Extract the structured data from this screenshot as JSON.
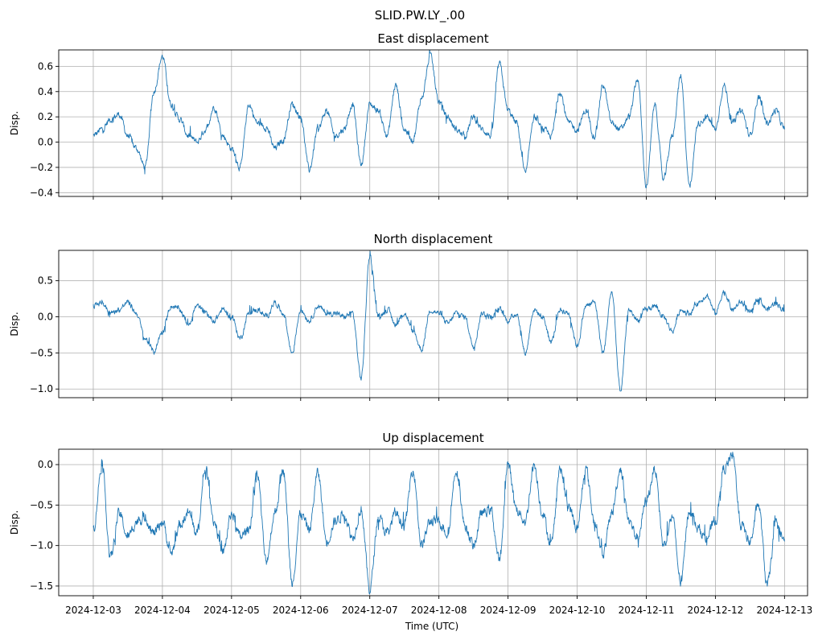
{
  "figure": {
    "suptitle": "SLID.PW.LY_.00"
  },
  "chart_data": [
    {
      "type": "line",
      "title": "East displacement",
      "ylabel": "Disp.",
      "xlabel": "",
      "xlim": [
        "2024-12-02T12:00",
        "2024-12-13T08:00"
      ],
      "ylim": [
        -0.43,
        0.73
      ],
      "yticks": [
        -0.4,
        -0.2,
        0.0,
        0.2,
        0.4,
        0.6
      ],
      "ytick_labels": [
        "−0.4",
        "−0.2",
        "0.0",
        "0.2",
        "0.4",
        "0.6"
      ],
      "xticks": [
        "2024-12-03",
        "2024-12-04",
        "2024-12-05",
        "2024-12-06",
        "2024-12-07",
        "2024-12-08",
        "2024-12-09",
        "2024-12-10",
        "2024-12-11",
        "2024-12-12",
        "2024-12-13"
      ],
      "show_xtick_labels": false,
      "grid": true,
      "color": "#1f77b4",
      "series": [
        {
          "x": [
            "2024-12-03T00:00",
            "2024-12-03T03:00",
            "2024-12-03T06:00",
            "2024-12-03T09:00",
            "2024-12-03T12:00",
            "2024-12-03T15:00",
            "2024-12-03T18:00",
            "2024-12-03T21:00",
            "2024-12-04T00:00",
            "2024-12-04T03:00",
            "2024-12-04T06:00",
            "2024-12-04T09:00",
            "2024-12-04T12:00",
            "2024-12-04T15:00",
            "2024-12-04T18:00",
            "2024-12-04T21:00",
            "2024-12-05T00:00",
            "2024-12-05T03:00",
            "2024-12-05T06:00",
            "2024-12-05T09:00",
            "2024-12-05T12:00",
            "2024-12-05T15:00",
            "2024-12-05T18:00",
            "2024-12-05T21:00",
            "2024-12-06T00:00",
            "2024-12-06T03:00",
            "2024-12-06T06:00",
            "2024-12-06T09:00",
            "2024-12-06T12:00",
            "2024-12-06T15:00",
            "2024-12-06T18:00",
            "2024-12-06T21:00",
            "2024-12-07T00:00",
            "2024-12-07T03:00",
            "2024-12-07T06:00",
            "2024-12-07T09:00",
            "2024-12-07T12:00",
            "2024-12-07T15:00",
            "2024-12-07T18:00",
            "2024-12-07T21:00",
            "2024-12-08T00:00",
            "2024-12-08T03:00",
            "2024-12-08T06:00",
            "2024-12-08T09:00",
            "2024-12-08T12:00",
            "2024-12-08T15:00",
            "2024-12-08T18:00",
            "2024-12-08T21:00",
            "2024-12-09T00:00",
            "2024-12-09T03:00",
            "2024-12-09T06:00",
            "2024-12-09T09:00",
            "2024-12-09T12:00",
            "2024-12-09T15:00",
            "2024-12-09T18:00",
            "2024-12-09T21:00",
            "2024-12-10T00:00",
            "2024-12-10T03:00",
            "2024-12-10T06:00",
            "2024-12-10T09:00",
            "2024-12-10T12:00",
            "2024-12-10T15:00",
            "2024-12-10T18:00",
            "2024-12-10T21:00",
            "2024-12-11T00:00",
            "2024-12-11T03:00",
            "2024-12-11T06:00",
            "2024-12-11T09:00",
            "2024-12-11T12:00",
            "2024-12-11T15:00",
            "2024-12-11T18:00",
            "2024-12-11T21:00",
            "2024-12-12T00:00",
            "2024-12-12T03:00",
            "2024-12-12T06:00",
            "2024-12-12T09:00",
            "2024-12-12T12:00",
            "2024-12-12T15:00",
            "2024-12-12T18:00",
            "2024-12-12T21:00",
            "2024-12-13T00:00"
          ],
          "y": [
            0.05,
            0.1,
            0.18,
            0.22,
            0.05,
            -0.05,
            -0.2,
            0.4,
            0.68,
            0.3,
            0.18,
            0.05,
            0.0,
            0.1,
            0.28,
            0.05,
            -0.05,
            -0.2,
            0.3,
            0.15,
            0.12,
            -0.05,
            0.02,
            0.3,
            0.2,
            -0.22,
            0.1,
            0.25,
            0.05,
            0.1,
            0.3,
            -0.18,
            0.3,
            0.25,
            0.05,
            0.45,
            0.1,
            0.02,
            0.35,
            0.68,
            0.32,
            0.2,
            0.1,
            0.05,
            0.2,
            0.1,
            0.05,
            0.62,
            0.25,
            0.15,
            -0.25,
            0.2,
            0.1,
            0.05,
            0.4,
            0.15,
            0.1,
            0.25,
            0.05,
            0.45,
            0.15,
            0.1,
            0.2,
            0.5,
            -0.35,
            0.3,
            -0.3,
            0.05,
            0.52,
            -0.35,
            0.15,
            0.2,
            0.1,
            0.45,
            0.15,
            0.25,
            0.05,
            0.35,
            0.15,
            0.25,
            0.1
          ],
          "noise": 0.04
        }
      ]
    },
    {
      "type": "line",
      "title": "North displacement",
      "ylabel": "Disp.",
      "xlabel": "",
      "xlim": [
        "2024-12-02T12:00",
        "2024-12-13T08:00"
      ],
      "ylim": [
        -1.12,
        0.92
      ],
      "yticks": [
        -1.0,
        -0.5,
        0.0,
        0.5
      ],
      "ytick_labels": [
        "−1.0",
        "−0.5",
        "0.0",
        "0.5"
      ],
      "xticks": [
        "2024-12-03",
        "2024-12-04",
        "2024-12-05",
        "2024-12-06",
        "2024-12-07",
        "2024-12-08",
        "2024-12-09",
        "2024-12-10",
        "2024-12-11",
        "2024-12-12",
        "2024-12-13"
      ],
      "show_xtick_labels": false,
      "grid": true,
      "color": "#1f77b4",
      "series": [
        {
          "x": [
            "2024-12-03T00:00",
            "2024-12-03T03:00",
            "2024-12-03T06:00",
            "2024-12-03T09:00",
            "2024-12-03T12:00",
            "2024-12-03T15:00",
            "2024-12-03T18:00",
            "2024-12-03T21:00",
            "2024-12-04T00:00",
            "2024-12-04T03:00",
            "2024-12-04T06:00",
            "2024-12-04T09:00",
            "2024-12-04T12:00",
            "2024-12-04T15:00",
            "2024-12-04T18:00",
            "2024-12-04T21:00",
            "2024-12-05T00:00",
            "2024-12-05T03:00",
            "2024-12-05T06:00",
            "2024-12-05T09:00",
            "2024-12-05T12:00",
            "2024-12-05T15:00",
            "2024-12-05T18:00",
            "2024-12-05T21:00",
            "2024-12-06T00:00",
            "2024-12-06T03:00",
            "2024-12-06T06:00",
            "2024-12-06T09:00",
            "2024-12-06T12:00",
            "2024-12-06T15:00",
            "2024-12-06T18:00",
            "2024-12-06T21:00",
            "2024-12-07T00:00",
            "2024-12-07T03:00",
            "2024-12-07T06:00",
            "2024-12-07T09:00",
            "2024-12-07T12:00",
            "2024-12-07T15:00",
            "2024-12-07T18:00",
            "2024-12-07T21:00",
            "2024-12-08T00:00",
            "2024-12-08T03:00",
            "2024-12-08T06:00",
            "2024-12-08T09:00",
            "2024-12-08T12:00",
            "2024-12-08T15:00",
            "2024-12-08T18:00",
            "2024-12-08T21:00",
            "2024-12-09T00:00",
            "2024-12-09T03:00",
            "2024-12-09T06:00",
            "2024-12-09T09:00",
            "2024-12-09T12:00",
            "2024-12-09T15:00",
            "2024-12-09T18:00",
            "2024-12-09T21:00",
            "2024-12-10T00:00",
            "2024-12-10T03:00",
            "2024-12-10T06:00",
            "2024-12-10T09:00",
            "2024-12-10T12:00",
            "2024-12-10T15:00",
            "2024-12-10T18:00",
            "2024-12-10T21:00",
            "2024-12-11T00:00",
            "2024-12-11T03:00",
            "2024-12-11T06:00",
            "2024-12-11T09:00",
            "2024-12-11T12:00",
            "2024-12-11T15:00",
            "2024-12-11T18:00",
            "2024-12-11T21:00",
            "2024-12-12T00:00",
            "2024-12-12T03:00",
            "2024-12-12T06:00",
            "2024-12-12T09:00",
            "2024-12-12T12:00",
            "2024-12-12T15:00",
            "2024-12-12T18:00",
            "2024-12-12T21:00",
            "2024-12-13T00:00"
          ],
          "y": [
            0.15,
            0.2,
            0.05,
            0.1,
            0.2,
            0.05,
            -0.3,
            -0.48,
            -0.2,
            0.15,
            0.1,
            -0.1,
            0.15,
            0.05,
            -0.05,
            0.1,
            0.0,
            -0.3,
            0.05,
            0.1,
            0.0,
            0.2,
            0.05,
            -0.5,
            0.1,
            -0.05,
            0.15,
            0.05,
            0.05,
            0.0,
            0.05,
            -0.85,
            0.85,
            0.0,
            0.1,
            -0.1,
            0.05,
            -0.2,
            -0.45,
            0.1,
            0.05,
            -0.1,
            0.05,
            0.0,
            -0.4,
            0.05,
            0.0,
            0.1,
            -0.05,
            0.05,
            -0.5,
            0.1,
            0.0,
            -0.35,
            0.1,
            0.05,
            -0.4,
            0.15,
            0.2,
            -0.5,
            0.35,
            -1.02,
            0.1,
            -0.05,
            0.1,
            0.15,
            0.0,
            -0.2,
            0.1,
            0.05,
            0.2,
            0.3,
            0.05,
            0.35,
            0.1,
            0.2,
            0.05,
            0.25,
            0.1,
            0.2,
            0.08
          ],
          "noise": 0.06
        }
      ]
    },
    {
      "type": "line",
      "title": "Up displacement",
      "ylabel": "Disp.",
      "xlabel": "Time (UTC)",
      "xlim": [
        "2024-12-02T12:00",
        "2024-12-13T08:00"
      ],
      "ylim": [
        -1.62,
        0.19
      ],
      "yticks": [
        -1.5,
        -1.0,
        -0.5,
        0.0
      ],
      "ytick_labels": [
        "−1.5",
        "−1.0",
        "−0.5",
        "0.0"
      ],
      "xticks": [
        "2024-12-03",
        "2024-12-04",
        "2024-12-05",
        "2024-12-06",
        "2024-12-07",
        "2024-12-08",
        "2024-12-09",
        "2024-12-10",
        "2024-12-11",
        "2024-12-12",
        "2024-12-13"
      ],
      "show_xtick_labels": true,
      "grid": true,
      "color": "#1f77b4",
      "series": [
        {
          "x": [
            "2024-12-03T00:00",
            "2024-12-03T03:00",
            "2024-12-03T06:00",
            "2024-12-03T09:00",
            "2024-12-03T12:00",
            "2024-12-03T15:00",
            "2024-12-03T18:00",
            "2024-12-03T21:00",
            "2024-12-04T00:00",
            "2024-12-04T03:00",
            "2024-12-04T06:00",
            "2024-12-04T09:00",
            "2024-12-04T12:00",
            "2024-12-04T15:00",
            "2024-12-04T18:00",
            "2024-12-04T21:00",
            "2024-12-05T00:00",
            "2024-12-05T03:00",
            "2024-12-05T06:00",
            "2024-12-05T09:00",
            "2024-12-05T12:00",
            "2024-12-05T15:00",
            "2024-12-05T18:00",
            "2024-12-05T21:00",
            "2024-12-06T00:00",
            "2024-12-06T03:00",
            "2024-12-06T06:00",
            "2024-12-06T09:00",
            "2024-12-06T12:00",
            "2024-12-06T15:00",
            "2024-12-06T18:00",
            "2024-12-06T21:00",
            "2024-12-07T00:00",
            "2024-12-07T03:00",
            "2024-12-07T06:00",
            "2024-12-07T09:00",
            "2024-12-07T12:00",
            "2024-12-07T15:00",
            "2024-12-07T18:00",
            "2024-12-07T21:00",
            "2024-12-08T00:00",
            "2024-12-08T03:00",
            "2024-12-08T06:00",
            "2024-12-08T09:00",
            "2024-12-08T12:00",
            "2024-12-08T15:00",
            "2024-12-08T18:00",
            "2024-12-08T21:00",
            "2024-12-09T00:00",
            "2024-12-09T03:00",
            "2024-12-09T06:00",
            "2024-12-09T09:00",
            "2024-12-09T12:00",
            "2024-12-09T15:00",
            "2024-12-09T18:00",
            "2024-12-09T21:00",
            "2024-12-10T00:00",
            "2024-12-10T03:00",
            "2024-12-10T06:00",
            "2024-12-10T09:00",
            "2024-12-10T12:00",
            "2024-12-10T15:00",
            "2024-12-10T18:00",
            "2024-12-10T21:00",
            "2024-12-11T00:00",
            "2024-12-11T03:00",
            "2024-12-11T06:00",
            "2024-12-11T09:00",
            "2024-12-11T12:00",
            "2024-12-11T15:00",
            "2024-12-11T18:00",
            "2024-12-11T21:00",
            "2024-12-12T00:00",
            "2024-12-12T03:00",
            "2024-12-12T06:00",
            "2024-12-12T09:00",
            "2024-12-12T12:00",
            "2024-12-12T15:00",
            "2024-12-12T18:00",
            "2024-12-12T21:00",
            "2024-12-13T00:00"
          ],
          "y": [
            -0.8,
            0.0,
            -1.15,
            -0.6,
            -0.9,
            -0.7,
            -0.65,
            -0.85,
            -0.7,
            -1.1,
            -0.75,
            -0.6,
            -0.85,
            -0.05,
            -0.7,
            -1.1,
            -0.6,
            -0.9,
            -0.8,
            -0.1,
            -1.2,
            -0.6,
            -0.05,
            -1.45,
            -0.6,
            -0.8,
            -0.1,
            -0.95,
            -0.7,
            -0.6,
            -0.9,
            -0.55,
            -1.55,
            -0.65,
            -0.85,
            -0.6,
            -0.75,
            -0.05,
            -1.0,
            -0.7,
            -0.7,
            -0.85,
            -0.05,
            -0.75,
            -1.0,
            -0.6,
            -0.55,
            -1.2,
            0.0,
            -0.55,
            -0.7,
            0.0,
            -0.6,
            -1.0,
            -0.05,
            -0.5,
            -0.8,
            -0.05,
            -0.7,
            -1.1,
            -0.6,
            -0.05,
            -0.7,
            -0.9,
            -0.45,
            -0.05,
            -1.0,
            -0.65,
            -1.45,
            -0.55,
            -0.8,
            -0.9,
            -0.7,
            -0.05,
            0.1,
            -0.75,
            -0.95,
            -0.5,
            -1.5,
            -0.75,
            -0.95
          ],
          "noise": 0.1
        }
      ]
    }
  ]
}
